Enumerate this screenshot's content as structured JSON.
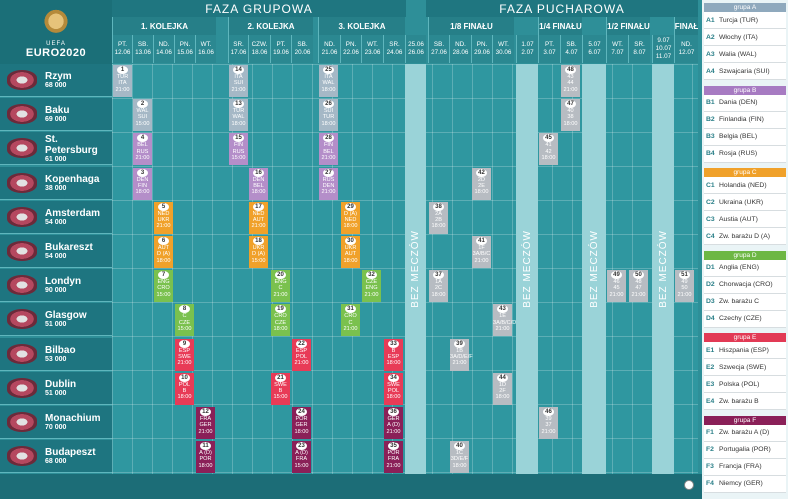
{
  "logo": {
    "uefa": "UEFA",
    "euro": "EURO2020"
  },
  "phases": {
    "group": "FAZA GRUPOWA",
    "knockout": "FAZA PUCHAROWA"
  },
  "rounds": [
    "1. KOLEJKA",
    "2. KOLEJKA",
    "3. KOLEJKA",
    "1/8 FINAŁU",
    "1/4 FINAŁU",
    "1/2 FINAŁU",
    "FINAŁ"
  ],
  "dates": [
    {
      "d": "PT.",
      "n": "12.06"
    },
    {
      "d": "SB.",
      "n": "13.06"
    },
    {
      "d": "ND.",
      "n": "14.06"
    },
    {
      "d": "PN.",
      "n": "15.06"
    },
    {
      "d": "WT.",
      "n": "16.06"
    },
    {
      "d": "SR.",
      "n": "17.06"
    },
    {
      "d": "CZW.",
      "n": "18.06"
    },
    {
      "d": "PT.",
      "n": "19.06"
    },
    {
      "d": "SB.",
      "n": "20.06"
    },
    {
      "d": "ND.",
      "n": "21.06"
    },
    {
      "d": "PN.",
      "n": "22.06"
    },
    {
      "d": "WT.",
      "n": "23.06"
    },
    {
      "d": "SR.",
      "n": "24.06"
    },
    {
      "d": "25.06",
      "n": "26.06"
    },
    {
      "d": "SB.",
      "n": "27.06"
    },
    {
      "d": "ND.",
      "n": "28.06"
    },
    {
      "d": "PN.",
      "n": "29.06"
    },
    {
      "d": "WT.",
      "n": "30.06"
    },
    {
      "d": "1.07",
      "n": "2.07"
    },
    {
      "d": "PT.",
      "n": "3.07"
    },
    {
      "d": "SB.",
      "n": "4.07"
    },
    {
      "d": "5.07",
      "n": "6.07"
    },
    {
      "d": "WT.",
      "n": "7.07"
    },
    {
      "d": "SR.",
      "n": "8.07"
    },
    {
      "d": "9.07",
      "n": "10.07 11.07"
    },
    {
      "d": "ND.",
      "n": "12.07"
    }
  ],
  "rest_label": "BEZ MECZÓW",
  "cities": [
    {
      "name": "Rzym",
      "cap": "68 000"
    },
    {
      "name": "Baku",
      "cap": "69 000"
    },
    {
      "name": "St. Petersburg",
      "cap": "61 000"
    },
    {
      "name": "Kopenhaga",
      "cap": "38 000"
    },
    {
      "name": "Amsterdam",
      "cap": "54 000"
    },
    {
      "name": "Bukareszt",
      "cap": "54 000"
    },
    {
      "name": "Londyn",
      "cap": "90 000"
    },
    {
      "name": "Glasgow",
      "cap": "51 000"
    },
    {
      "name": "Bilbao",
      "cap": "53 000"
    },
    {
      "name": "Dublin",
      "cap": "51 000"
    },
    {
      "name": "Monachium",
      "cap": "70 000"
    },
    {
      "name": "Budapeszt",
      "cap": "68 000"
    }
  ],
  "matches": [
    {
      "no": "1",
      "col": 0,
      "row": 0,
      "g": "A",
      "l": [
        "TUR",
        "ITA",
        "21:00"
      ]
    },
    {
      "no": "2",
      "col": 1,
      "row": 1,
      "g": "A",
      "l": [
        "WAL",
        "SUI",
        "15:00"
      ]
    },
    {
      "no": "3",
      "col": 1,
      "row": 3,
      "g": "B",
      "l": [
        "DEN",
        "FIN",
        "18:00"
      ]
    },
    {
      "no": "4",
      "col": 1,
      "row": 2,
      "g": "B",
      "l": [
        "BEL",
        "RUS",
        "21:00"
      ]
    },
    {
      "no": "5",
      "col": 2,
      "row": 4,
      "g": "C",
      "l": [
        "NED",
        "UKR",
        "21:00"
      ]
    },
    {
      "no": "6",
      "col": 2,
      "row": 5,
      "g": "C",
      "l": [
        "AUT",
        "D (A)",
        "18:00"
      ]
    },
    {
      "no": "7",
      "col": 2,
      "row": 6,
      "g": "D",
      "l": [
        "ENG",
        "CRO",
        "15:00"
      ]
    },
    {
      "no": "8",
      "col": 3,
      "row": 7,
      "g": "D",
      "l": [
        "C",
        "CZE",
        "15:00"
      ]
    },
    {
      "no": "9",
      "col": 3,
      "row": 8,
      "g": "E",
      "l": [
        "ESP",
        "SWE",
        "21:00"
      ]
    },
    {
      "no": "10",
      "col": 3,
      "row": 9,
      "g": "E",
      "l": [
        "POL",
        "B",
        "18:00"
      ]
    },
    {
      "no": "11",
      "col": 4,
      "row": 11,
      "g": "F",
      "l": [
        "A (D)",
        "POR",
        "18:00"
      ]
    },
    {
      "no": "12",
      "col": 4,
      "row": 10,
      "g": "F",
      "l": [
        "FRA",
        "GER",
        "21:00"
      ]
    },
    {
      "no": "13",
      "col": 5,
      "row": 1,
      "g": "A",
      "l": [
        "TUR",
        "WAL",
        "18:00"
      ]
    },
    {
      "no": "14",
      "col": 5,
      "row": 0,
      "g": "A",
      "l": [
        "ITA",
        "SUI",
        "21:00"
      ]
    },
    {
      "no": "15",
      "col": 5,
      "row": 2,
      "g": "B",
      "l": [
        "FIN",
        "RUS",
        "15:00"
      ]
    },
    {
      "no": "16",
      "col": 6,
      "row": 3,
      "g": "B",
      "l": [
        "DEN",
        "BEL",
        "18:00"
      ]
    },
    {
      "no": "17",
      "col": 6,
      "row": 4,
      "g": "C",
      "l": [
        "NED",
        "AUT",
        "21:00"
      ]
    },
    {
      "no": "18",
      "col": 6,
      "row": 5,
      "g": "C",
      "l": [
        "UKR",
        "D (A)",
        "15:00"
      ]
    },
    {
      "no": "19",
      "col": 7,
      "row": 7,
      "g": "D",
      "l": [
        "CRO",
        "CZE",
        "18:00"
      ]
    },
    {
      "no": "20",
      "col": 7,
      "row": 6,
      "g": "D",
      "l": [
        "ENG",
        "C",
        "21:00"
      ]
    },
    {
      "no": "21",
      "col": 7,
      "row": 9,
      "g": "E",
      "l": [
        "SWE",
        "B",
        "15:00"
      ]
    },
    {
      "no": "22",
      "col": 8,
      "row": 8,
      "g": "E",
      "l": [
        "ESP",
        "POL",
        "21:00"
      ]
    },
    {
      "no": "23",
      "col": 8,
      "row": 11,
      "g": "F",
      "l": [
        "A (D)",
        "FRA",
        "15:00"
      ]
    },
    {
      "no": "24",
      "col": 8,
      "row": 10,
      "g": "F",
      "l": [
        "POR",
        "GER",
        "18:00"
      ]
    },
    {
      "no": "25",
      "col": 9,
      "row": 0,
      "g": "A",
      "l": [
        "ITA",
        "WAL",
        "18:00"
      ]
    },
    {
      "no": "26",
      "col": 9,
      "row": 1,
      "g": "A",
      "l": [
        "SUI",
        "TUR",
        "18:00"
      ]
    },
    {
      "no": "27",
      "col": 9,
      "row": 3,
      "g": "B",
      "l": [
        "RUS",
        "DEN",
        "21:00"
      ]
    },
    {
      "no": "28",
      "col": 9,
      "row": 2,
      "g": "B",
      "l": [
        "FIN",
        "BEL",
        "21:00"
      ]
    },
    {
      "no": "29",
      "col": 10,
      "row": 4,
      "g": "C",
      "l": [
        "D (A)",
        "NED",
        "18:00"
      ]
    },
    {
      "no": "30",
      "col": 10,
      "row": 5,
      "g": "C",
      "l": [
        "UKR",
        "AUT",
        "18:00"
      ]
    },
    {
      "no": "31",
      "col": 10,
      "row": 7,
      "g": "D",
      "l": [
        "CRO",
        "C",
        "21:00"
      ]
    },
    {
      "no": "32",
      "col": 11,
      "row": 6,
      "g": "D",
      "l": [
        "CZE",
        "ENG",
        "21:00"
      ]
    },
    {
      "no": "33",
      "col": 12,
      "row": 8,
      "g": "E",
      "l": [
        "B",
        "ESP",
        "18:00"
      ]
    },
    {
      "no": "34",
      "col": 12,
      "row": 9,
      "g": "E",
      "l": [
        "SWE",
        "POL",
        "18:00"
      ]
    },
    {
      "no": "35",
      "col": 12,
      "row": 11,
      "g": "F",
      "l": [
        "POR",
        "FRA",
        "21:00"
      ]
    },
    {
      "no": "36",
      "col": 12,
      "row": 10,
      "g": "F",
      "l": [
        "GER",
        "A (D)",
        "21:00"
      ]
    },
    {
      "no": "37",
      "col": 14,
      "row": 6,
      "g": "K",
      "l": [
        "1A",
        "2C",
        "18:00"
      ]
    },
    {
      "no": "38",
      "col": 14,
      "row": 4,
      "g": "K",
      "l": [
        "2A",
        "2B",
        "18:00"
      ]
    },
    {
      "no": "39",
      "col": 15,
      "row": 8,
      "g": "K",
      "l": [
        "1B",
        "3A/D/E/F",
        "21:00"
      ]
    },
    {
      "no": "40",
      "col": 15,
      "row": 11,
      "g": "K",
      "l": [
        "1C",
        "3D/E/F",
        "18:00"
      ]
    },
    {
      "no": "41",
      "col": 16,
      "row": 5,
      "g": "K",
      "l": [
        "1F",
        "3A/B/C",
        "21:00"
      ]
    },
    {
      "no": "42",
      "col": 16,
      "row": 3,
      "g": "K",
      "l": [
        "2D",
        "2E",
        "18:00"
      ]
    },
    {
      "no": "43",
      "col": 17,
      "row": 7,
      "g": "K",
      "l": [
        "1E",
        "3A/B/C/D",
        "21:00"
      ]
    },
    {
      "no": "44",
      "col": 17,
      "row": 9,
      "g": "K",
      "l": [
        "1D",
        "2F",
        "18:00"
      ]
    },
    {
      "no": "45",
      "col": 19,
      "row": 2,
      "g": "K",
      "l": [
        "41",
        "42",
        "18:00"
      ]
    },
    {
      "no": "46",
      "col": 19,
      "row": 10,
      "g": "K",
      "l": [
        "39",
        "37",
        "21:00"
      ]
    },
    {
      "no": "47",
      "col": 20,
      "row": 1,
      "g": "K",
      "l": [
        "40",
        "38",
        "18:00"
      ]
    },
    {
      "no": "48",
      "col": 20,
      "row": 0,
      "g": "K",
      "l": [
        "43",
        "44",
        "21:00"
      ]
    },
    {
      "no": "49",
      "col": 22,
      "row": 6,
      "g": "K",
      "l": [
        "46",
        "45",
        "21:00"
      ]
    },
    {
      "no": "50",
      "col": 23,
      "row": 6,
      "g": "K",
      "l": [
        "48",
        "47",
        "21:00"
      ]
    },
    {
      "no": "51",
      "col": 25,
      "row": 6,
      "g": "K",
      "l": [
        "49",
        "50",
        "21:00"
      ]
    }
  ],
  "groups": [
    {
      "name": "grupa A",
      "color": "#8fa9bd",
      "teams": [
        [
          "A1",
          "Turcja (TUR)"
        ],
        [
          "A2",
          "Włochy (ITA)"
        ],
        [
          "A3",
          "Walia (WAL)"
        ],
        [
          "A4",
          "Szwajcaria (SUI)"
        ]
      ]
    },
    {
      "name": "grupa B",
      "color": "#a77bc2",
      "teams": [
        [
          "B1",
          "Dania (DEN)"
        ],
        [
          "B2",
          "Finlandia (FIN)"
        ],
        [
          "B3",
          "Belgia (BEL)"
        ],
        [
          "B4",
          "Rosja (RUS)"
        ]
      ]
    },
    {
      "name": "grupa C",
      "color": "#f0a12a",
      "teams": [
        [
          "C1",
          "Holandia (NED)"
        ],
        [
          "C2",
          "Ukraina (UKR)"
        ],
        [
          "C3",
          "Austia (AUT)"
        ],
        [
          "C4",
          "Zw. barażu D (A)"
        ]
      ]
    },
    {
      "name": "grupa D",
      "color": "#6db744",
      "teams": [
        [
          "D1",
          "Anglia (ENG)"
        ],
        [
          "D2",
          "Chorwacja (CRO)"
        ],
        [
          "D3",
          "Zw. barażu C"
        ],
        [
          "D4",
          "Czechy (CZE)"
        ]
      ]
    },
    {
      "name": "grupa E",
      "color": "#e23a55",
      "teams": [
        [
          "E1",
          "Hiszpania (ESP)"
        ],
        [
          "E2",
          "Szwecja (SWE)"
        ],
        [
          "E3",
          "Polska (POL)"
        ],
        [
          "E4",
          "Zw. barażu B"
        ]
      ]
    },
    {
      "name": "grupa F",
      "color": "#8a2058",
      "teams": [
        [
          "F1",
          "Zw. barażu A (D)"
        ],
        [
          "F2",
          "Portugalia (POR)"
        ],
        [
          "F3",
          "Francja (FRA)"
        ],
        [
          "F4",
          "Niemcy (GER)"
        ]
      ]
    }
  ]
}
